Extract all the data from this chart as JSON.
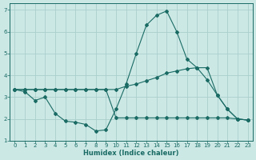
{
  "xlabel": "Humidex (Indice chaleur)",
  "bg_color": "#cce8e5",
  "grid_color": "#aacfcc",
  "line_color": "#1a6b64",
  "xlim": [
    -0.5,
    23.5
  ],
  "ylim": [
    1,
    7.3
  ],
  "yticks": [
    1,
    2,
    3,
    4,
    5,
    6,
    7
  ],
  "xticks": [
    0,
    1,
    2,
    3,
    4,
    5,
    6,
    7,
    8,
    9,
    10,
    11,
    12,
    13,
    14,
    15,
    16,
    17,
    18,
    19,
    20,
    21,
    22,
    23
  ],
  "line1_x": [
    0,
    1,
    2,
    3,
    4,
    5,
    6,
    7,
    8,
    9,
    10,
    11,
    12,
    13,
    14,
    15,
    16,
    17,
    18,
    19,
    20,
    21,
    22,
    23
  ],
  "line1_y": [
    3.35,
    3.25,
    2.85,
    3.0,
    2.25,
    1.9,
    1.85,
    1.75,
    1.45,
    1.5,
    2.45,
    3.6,
    5.0,
    6.3,
    6.75,
    6.95,
    6.0,
    4.75,
    4.35,
    3.8,
    3.1,
    2.45,
    2.0,
    1.95
  ],
  "line2_x": [
    0,
    1,
    2,
    3,
    4,
    5,
    6,
    7,
    8,
    9,
    10,
    11,
    12,
    13,
    14,
    15,
    16,
    17,
    18,
    19,
    20,
    21,
    22,
    23
  ],
  "line2_y": [
    3.35,
    3.35,
    3.35,
    3.35,
    3.35,
    3.35,
    3.35,
    3.35,
    3.35,
    3.35,
    3.35,
    3.5,
    3.6,
    3.75,
    3.9,
    4.1,
    4.2,
    4.3,
    4.35,
    4.35,
    3.1,
    2.45,
    2.0,
    1.95
  ],
  "line3_x": [
    0,
    1,
    2,
    3,
    4,
    5,
    6,
    7,
    8,
    9,
    10,
    11,
    12,
    13,
    14,
    15,
    16,
    17,
    18,
    19,
    20,
    21,
    22,
    23
  ],
  "line3_y": [
    3.35,
    3.35,
    3.35,
    3.35,
    3.35,
    3.35,
    3.35,
    3.35,
    3.35,
    3.35,
    2.05,
    2.05,
    2.05,
    2.05,
    2.05,
    2.05,
    2.05,
    2.05,
    2.05,
    2.05,
    2.05,
    2.05,
    2.0,
    1.95
  ]
}
